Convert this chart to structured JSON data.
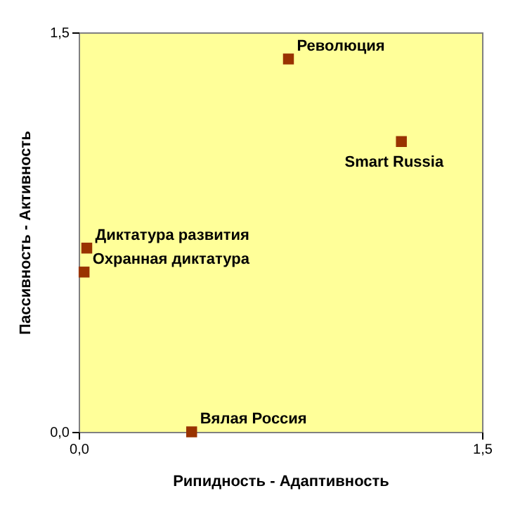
{
  "chart_data": {
    "type": "scatter",
    "xlabel": "Рипидность - Адаптивность",
    "ylabel": "Пассивность - Активность",
    "x": [
      0.78,
      1.2,
      0.03,
      0.02,
      0.42
    ],
    "series": [
      {
        "color": "#993300",
        "values": [
          1.4,
          1.09,
          0.69,
          0.6,
          0.0
        ]
      }
    ],
    "annotations": [
      {
        "text": "Революция",
        "x": 0.78,
        "y": 1.4
      },
      {
        "text": "Smart Russia",
        "x": 1.2,
        "y": 1.09
      },
      {
        "text": "Диктатура развития",
        "x": 0.03,
        "y": 0.69
      },
      {
        "text": "Охранная диктатура",
        "x": 0.02,
        "y": 0.6
      },
      {
        "text": "Вялая Россия",
        "x": 0.42,
        "y": 0.0
      }
    ],
    "xlim": [
      0,
      1.5
    ],
    "ylim": [
      0,
      1.5
    ],
    "xticks": [
      {
        "value": 0,
        "label": "0,0"
      },
      {
        "value": 1.5,
        "label": "1,5"
      }
    ],
    "yticks": [
      {
        "value": 0,
        "label": "0,0"
      },
      {
        "value": 1.5,
        "label": "1,5"
      }
    ],
    "marker": "square",
    "grid": false
  }
}
